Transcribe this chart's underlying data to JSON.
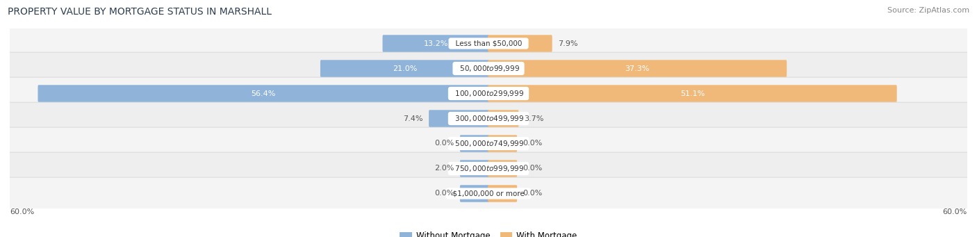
{
  "title": "PROPERTY VALUE BY MORTGAGE STATUS IN MARSHALL",
  "source": "Source: ZipAtlas.com",
  "categories": [
    "Less than $50,000",
    "$50,000 to $99,999",
    "$100,000 to $299,999",
    "$300,000 to $499,999",
    "$500,000 to $749,999",
    "$750,000 to $999,999",
    "$1,000,000 or more"
  ],
  "without_mortgage": [
    13.2,
    21.0,
    56.4,
    7.4,
    0.0,
    2.0,
    0.0
  ],
  "with_mortgage": [
    7.9,
    37.3,
    51.1,
    3.7,
    0.0,
    0.0,
    0.0
  ],
  "color_without": "#8fb3d9",
  "color_with": "#f0b97a",
  "xlim": 60.0,
  "bar_height": 0.52,
  "stub_size": 3.5,
  "fig_width": 14.06,
  "fig_height": 3.41,
  "title_fontsize": 10,
  "source_fontsize": 8,
  "label_fontsize": 8,
  "cat_fontsize": 7.5,
  "axis_label_fontsize": 8
}
